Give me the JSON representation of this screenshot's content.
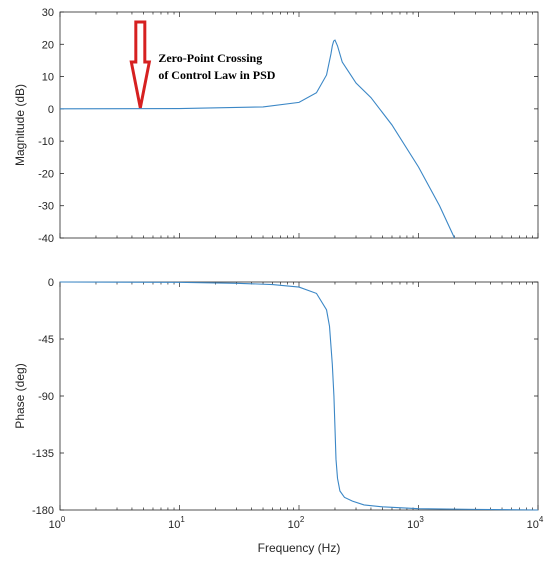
{
  "chart_data": [
    {
      "type": "line",
      "panel": "magnitude",
      "xlabel": "",
      "ylabel": "Magnitude (dB)",
      "xscale": "log",
      "xlim": [
        1,
        10000
      ],
      "ylim": [
        -40,
        30
      ],
      "yticks": [
        30,
        20,
        10,
        0,
        -10,
        -20,
        -30,
        -40
      ],
      "yticklabels": [
        "30",
        "20",
        "10",
        "0",
        "-10",
        "-20",
        "-30",
        "-40"
      ],
      "grid": false,
      "series": [
        {
          "color": "#3b87c6",
          "x": [
            1,
            10,
            50,
            100,
            140,
            170,
            185,
            190,
            195,
            200,
            210,
            230,
            260,
            300,
            400,
            600,
            1000,
            1500,
            2000
          ],
          "y": [
            0,
            0.1,
            0.6,
            2,
            5,
            10.5,
            17,
            19.5,
            21,
            21.3,
            19.5,
            14.5,
            11.5,
            8,
            3.5,
            -5,
            -18,
            -30,
            -40
          ]
        }
      ],
      "annotation": {
        "line1": "Zero-Point Crossing",
        "line2": "of Control Law in PSD",
        "arrow_x": 4.7,
        "arrow_y": 0,
        "arrow_color": "#d62020"
      }
    },
    {
      "type": "line",
      "panel": "phase",
      "xlabel": "Frequency (Hz)",
      "ylabel": "Phase (deg)",
      "xscale": "log",
      "xlim": [
        1,
        10000
      ],
      "ylim": [
        -180,
        0
      ],
      "yticks": [
        0,
        -45,
        -90,
        -135,
        -180
      ],
      "yticklabels": [
        "0",
        "-45",
        "-90",
        "-135",
        "-180"
      ],
      "xticks": [
        1,
        10,
        100,
        1000,
        10000
      ],
      "xticklabels": [
        {
          "base": "10",
          "exp": "0"
        },
        {
          "base": "10",
          "exp": "1"
        },
        {
          "base": "10",
          "exp": "2"
        },
        {
          "base": "10",
          "exp": "3"
        },
        {
          "base": "10",
          "exp": "4"
        }
      ],
      "grid": false,
      "series": [
        {
          "color": "#3b87c6",
          "x": [
            1,
            10,
            30,
            60,
            100,
            140,
            170,
            180,
            190,
            196,
            200,
            204,
            210,
            220,
            240,
            280,
            350,
            500,
            1000,
            3000,
            10000
          ],
          "y": [
            0,
            -0.3,
            -1,
            -2,
            -4,
            -9,
            -22,
            -35,
            -65,
            -90,
            -115,
            -140,
            -155,
            -165,
            -170,
            -173,
            -176,
            -177.5,
            -179,
            -179.5,
            -180
          ]
        }
      ]
    }
  ]
}
